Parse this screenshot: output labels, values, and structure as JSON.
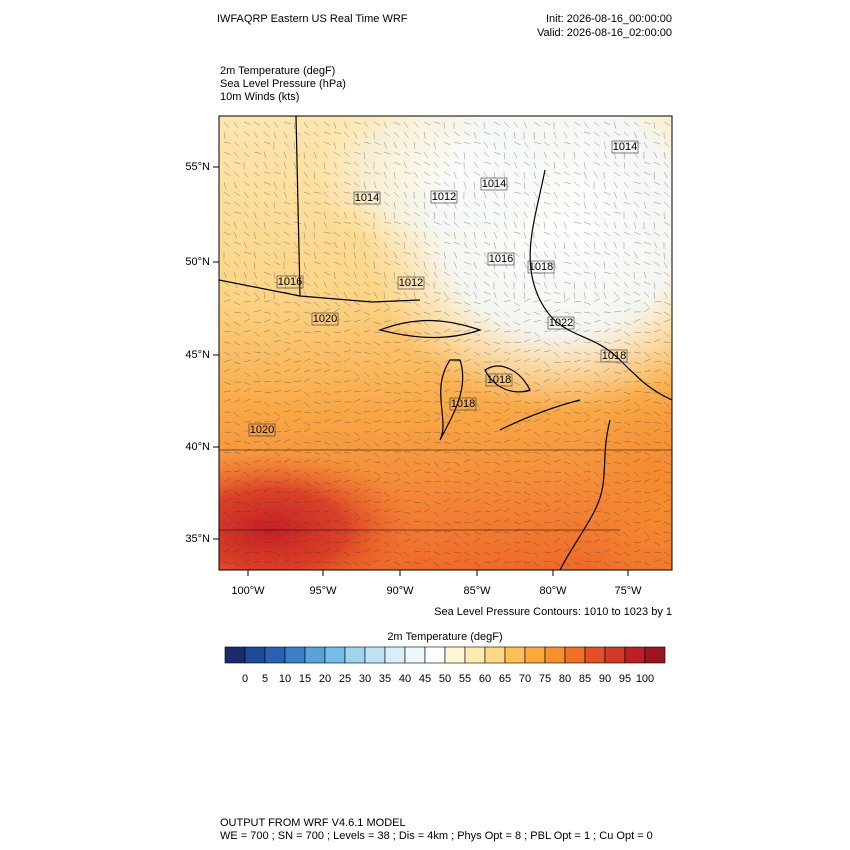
{
  "header": {
    "title": "IWFAQRP Eastern US Real Time WRF",
    "init": "Init: 2026-08-16_00:00:00",
    "valid": "Valid: 2026-08-16_02:00:00"
  },
  "fields": [
    "2m Temperature   (degF)",
    "Sea Level Pressure   (hPa)",
    "10m Winds   (kts)"
  ],
  "map": {
    "lat_labels": [
      "55°N",
      "50°N",
      "45°N",
      "40°N",
      "35°N"
    ],
    "lon_labels": [
      "100°W",
      "95°W",
      "90°W",
      "85°W",
      "80°W",
      "75°W"
    ],
    "contour_labels": [
      "1014",
      "1014",
      "1014",
      "1012",
      "1016",
      "1018",
      "1016",
      "1012",
      "1020",
      "1022",
      "1018",
      "1018",
      "1018",
      "1020"
    ],
    "contour_note": "Sea Level Pressure Contours: 1010 to 1023 by 1"
  },
  "colorbar": {
    "title": "2m Temperature  (degF)",
    "labels": [
      "0",
      "5",
      "10",
      "15",
      "20",
      "25",
      "30",
      "35",
      "40",
      "45",
      "50",
      "55",
      "60",
      "65",
      "70",
      "75",
      "80",
      "85",
      "90",
      "95",
      "100"
    ],
    "colors": [
      "#1a2b6b",
      "#1f4a9a",
      "#2a62b3",
      "#3a7fc6",
      "#5aa3d8",
      "#77bde6",
      "#9fd4f0",
      "#bfe3f5",
      "#d9eff8",
      "#ecf6fb",
      "#ffffff",
      "#fff6d8",
      "#ffeab0",
      "#fdd882",
      "#fcc05a",
      "#f9a93d",
      "#f6902f",
      "#f07028",
      "#e34f26",
      "#d23a26",
      "#bb2026",
      "#9a1620"
    ]
  },
  "footer": {
    "model": "OUTPUT FROM WRF V4.6.1 MODEL",
    "config": "WE = 700 ; SN = 700 ; Levels = 38 ; Dis = 4km ; Phys Opt = 8 ; PBL Opt = 1 ; Cu Opt = 0"
  }
}
